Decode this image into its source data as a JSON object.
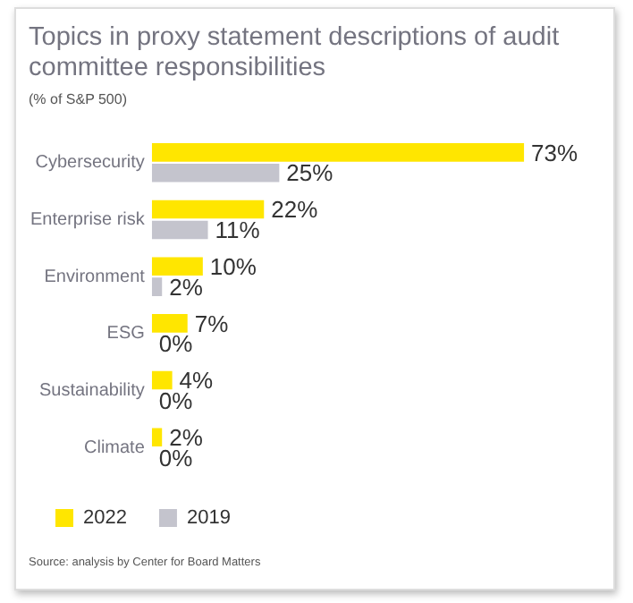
{
  "chart_data": {
    "type": "bar",
    "orientation": "horizontal",
    "title": "Topics in proxy statement descriptions of audit committee responsibilities",
    "subtitle": "(% of S&P 500)",
    "categories": [
      "Cybersecurity",
      "Enterprise risk",
      "Environment",
      "ESG",
      "Sustainability",
      "Climate"
    ],
    "series": [
      {
        "name": "2022",
        "color": "#ffe600",
        "values": [
          73,
          22,
          10,
          7,
          4,
          2
        ],
        "value_labels": [
          "73%",
          "22%",
          "10%",
          "7%",
          "4%",
          "2%"
        ]
      },
      {
        "name": "2019",
        "color": "#c4c4cd",
        "values": [
          25,
          11,
          2,
          0,
          0,
          0
        ],
        "value_labels": [
          "25%",
          "11%",
          "2%",
          "0%",
          "0%",
          "0%"
        ]
      }
    ],
    "legend": "bottom left",
    "grid": false,
    "annotations": [
      "Source: analysis by Center for Board Matters"
    ]
  }
}
